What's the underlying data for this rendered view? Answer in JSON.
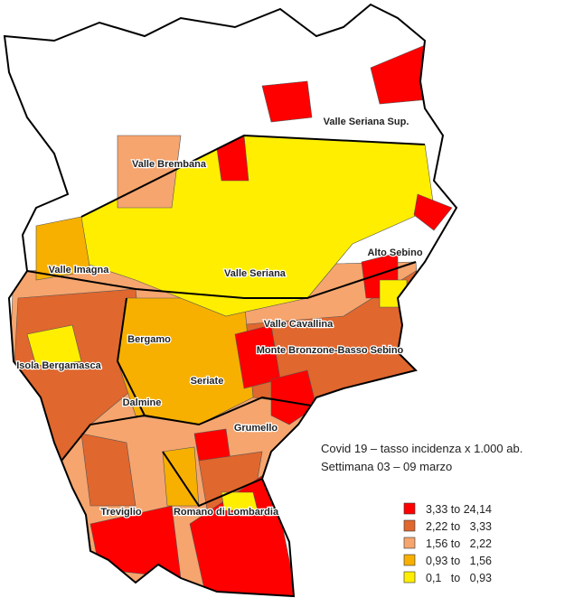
{
  "title": "Covid 19 – tasso incidenza x 1.000 ab.",
  "subtitle": "Settimana 03 – 09 marzo",
  "legend": [
    {
      "label": "3,33 to 24,14",
      "color": "#ff0000"
    },
    {
      "label": "2,22 to   3,33",
      "color": "#e0672e"
    },
    {
      "label": "1,56 to   2,22",
      "color": "#f6a56e"
    },
    {
      "label": "0,93 to   1,56",
      "color": "#f7b000"
    },
    {
      "label": "0,1   to   0,93",
      "color": "#ffee00"
    }
  ],
  "districts": [
    {
      "label": "Valle Seriana Sup."
    },
    {
      "label": "Valle Brembana"
    },
    {
      "label": "Alto Sebino"
    },
    {
      "label": "Valle Imagna"
    },
    {
      "label": "Valle Seriana"
    },
    {
      "label": "Valle Cavallina"
    },
    {
      "label": "Bergamo"
    },
    {
      "label": "Monte Bronzone-Basso Sebino"
    },
    {
      "label": "Isola Bergamasca"
    },
    {
      "label": "Seriate"
    },
    {
      "label": "Dalmine"
    },
    {
      "label": "Grumello"
    },
    {
      "label": "Treviglio"
    },
    {
      "label": "Romano di Lombardia"
    }
  ]
}
